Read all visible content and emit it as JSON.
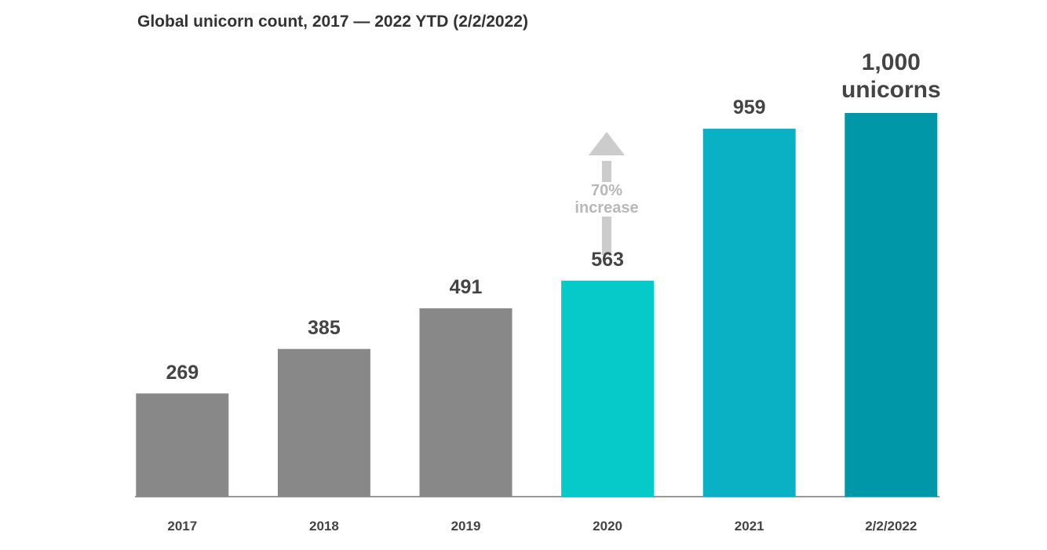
{
  "chart_data": {
    "type": "bar",
    "title": "Global unicorn count, 2017 — 2022 YTD (2/2/2022)",
    "categories": [
      "2017",
      "2018",
      "2019",
      "2020",
      "2021",
      "2/2/2022"
    ],
    "values": [
      269,
      385,
      491,
      563,
      959,
      1000
    ],
    "value_labels": [
      "269",
      "385",
      "491",
      "563",
      "959",
      "1,000 unicorns"
    ],
    "colors": [
      "#888888",
      "#888888",
      "#888888",
      "#06c9c9",
      "#0ab0c4",
      "#0098a8"
    ],
    "annotation": "70% increase"
  }
}
